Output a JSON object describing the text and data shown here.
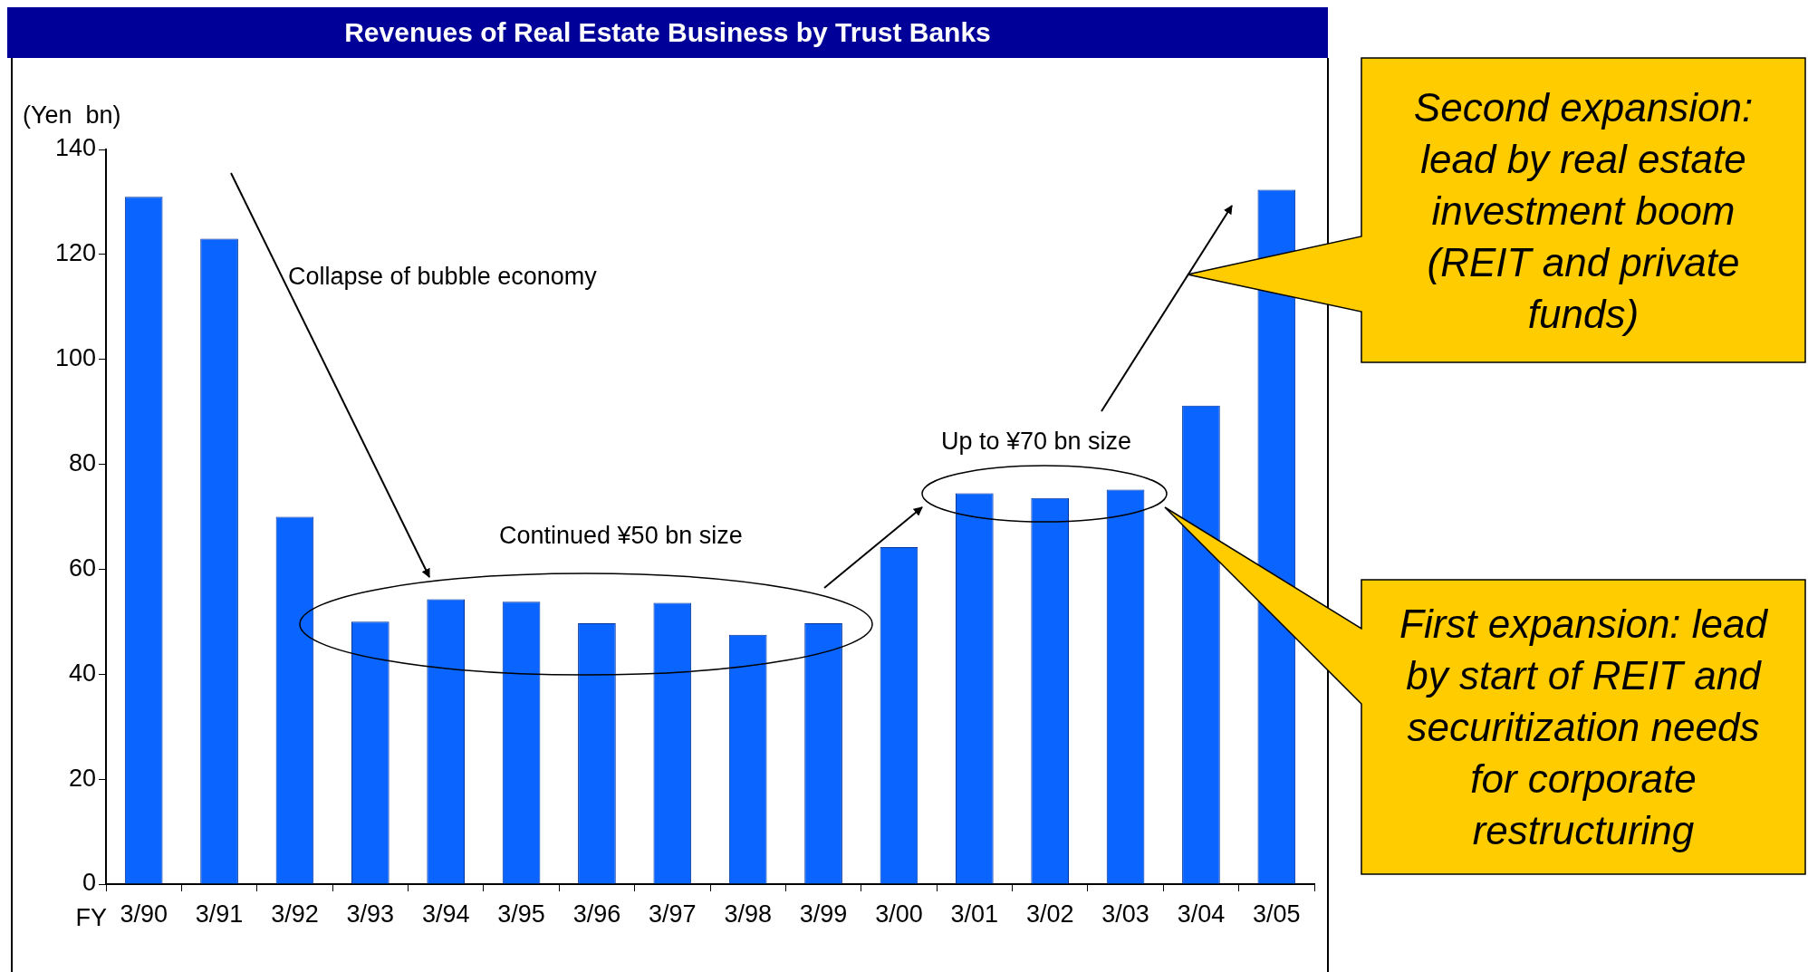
{
  "chart_data": {
    "type": "bar",
    "title": "Revenues of Real Estate Business by Trust Banks",
    "ylabel": "(Yen  bn)",
    "xlabel": "FY",
    "categories": [
      "3/90",
      "3/91",
      "3/92",
      "3/93",
      "3/94",
      "3/95",
      "3/96",
      "3/97",
      "3/98",
      "3/99",
      "3/00",
      "3/01",
      "3/02",
      "3/03",
      "3/04",
      "3/05"
    ],
    "values": [
      131,
      123,
      70,
      50,
      54.3,
      53.8,
      49.7,
      53.6,
      47.5,
      49.7,
      64.2,
      74.5,
      73.6,
      75.2,
      91.2,
      132.3
    ],
    "color": "#0a64ff",
    "ylim": [
      0,
      140
    ],
    "yticks": [
      0,
      20,
      40,
      60,
      80,
      100,
      120,
      140
    ],
    "grid": false,
    "legend": false,
    "annotations": [
      "Collapse of bubble economy",
      "Continued ¥50 bn size",
      "Up to ¥70 bn size",
      "Second expansion: lead by real estate investment boom (REIT and private funds)",
      "First expansion: lead by start of REIT and securitization needs for corporate restructuring"
    ]
  }
}
